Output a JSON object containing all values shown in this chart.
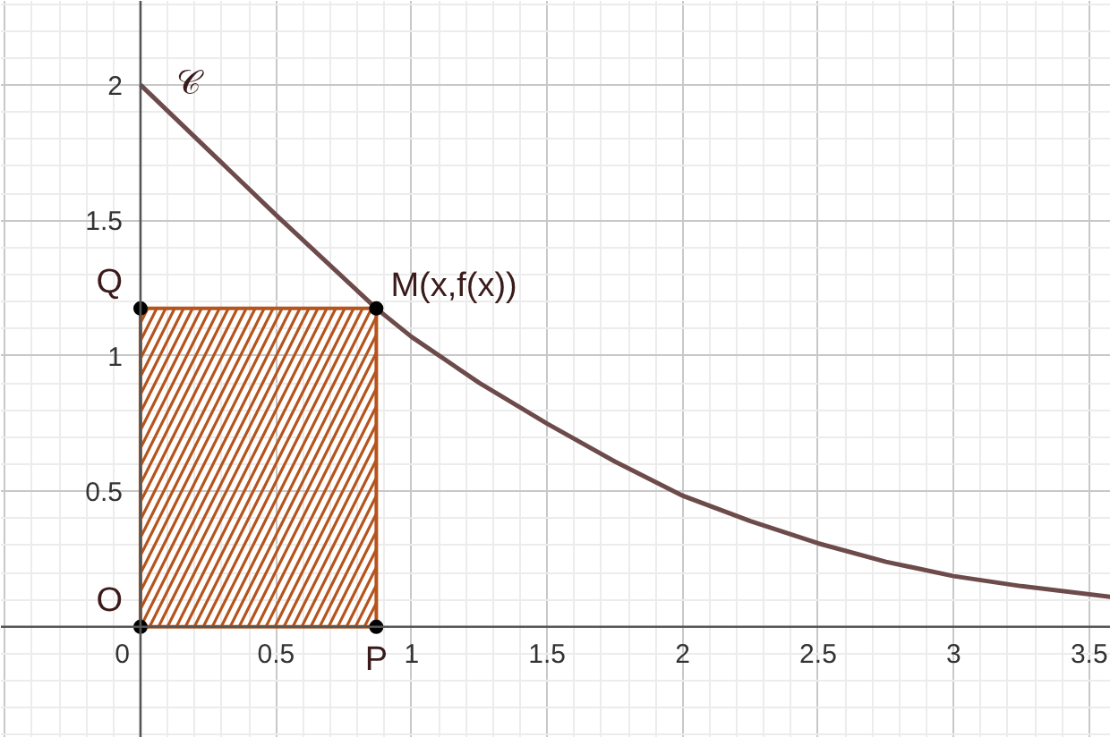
{
  "chart_data": {
    "type": "line",
    "series": [
      {
        "type": "area",
        "color": "#b5541c",
        "x": [
          0,
          0.87
        ],
        "values": [
          1.175,
          1.175
        ]
      },
      {
        "color": "#6e4b4b",
        "x": [
          0,
          0.25,
          0.5,
          0.87,
          1,
          1.25,
          1.5,
          1.75,
          2,
          2.25,
          2.5,
          2.75,
          3,
          3.25,
          3.58
        ],
        "values": [
          2,
          1.76,
          1.52,
          1.175,
          1.07,
          0.9,
          0.75,
          0.61,
          0.484,
          0.39,
          0.308,
          0.24,
          0.187,
          0.15,
          0.11
        ]
      },
      {
        "type": "scatter",
        "color": "#000000",
        "marker": "circle",
        "x": [
          0,
          0.87,
          0,
          0.87
        ],
        "values": [
          0,
          0,
          1.175,
          1.175
        ]
      }
    ],
    "annotations": [
      {
        "text": "𝒞",
        "x": 0.08,
        "y": 1.92
      },
      {
        "text": "M(x,f(x))",
        "x": 0.87,
        "y": 1.175
      },
      {
        "text": "Q",
        "x": 0,
        "y": 1.175
      },
      {
        "text": "O",
        "x": 0,
        "y": 0
      },
      {
        "text": "P",
        "x": 0.87,
        "y": 0
      }
    ],
    "xlim": [
      -0.515,
      3.58
    ],
    "ylim": [
      -0.41,
      2.31
    ],
    "xticks": [
      0,
      0.5,
      1,
      1.5,
      2,
      2.5,
      3,
      3.5
    ],
    "yticks": [
      0.5,
      1,
      1.5,
      2
    ],
    "grid": true
  }
}
